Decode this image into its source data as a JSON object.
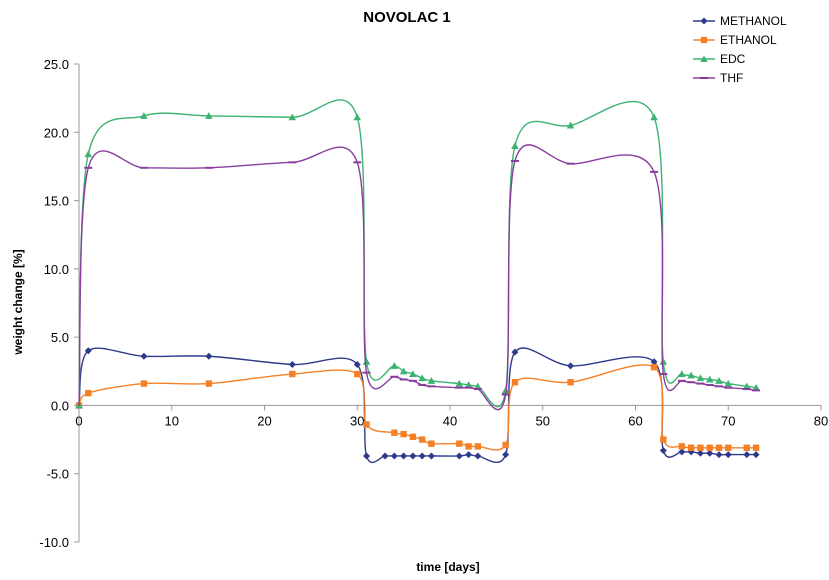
{
  "chart_data": {
    "type": "line",
    "title": "NOVOLAC 1",
    "xlabel": "time [days]",
    "ylabel": "weight change [%]",
    "xlim": [
      0,
      80
    ],
    "ylim": [
      -10,
      25
    ],
    "xticks": [
      0,
      10,
      20,
      30,
      40,
      50,
      60,
      70,
      80
    ],
    "yticks": [
      -10,
      -5,
      0,
      5,
      10,
      15,
      20,
      25
    ],
    "xtick_labels": [
      "0",
      "10",
      "20",
      "30",
      "40",
      "50",
      "60",
      "70",
      "80"
    ],
    "ytick_labels": [
      "-10.0",
      "-5.0",
      "0.0",
      "5.0",
      "10.0",
      "15.0",
      "20.0",
      "25.0"
    ],
    "grid": false,
    "legend_position": "top-right",
    "series": [
      {
        "name": "METHANOL",
        "color": "#2e3a8c",
        "marker": "diamond",
        "x": [
          0,
          1,
          7,
          14,
          23,
          30,
          31,
          33,
          34,
          35,
          36,
          37,
          38,
          41,
          42,
          43,
          46,
          47,
          53,
          62,
          63,
          65,
          66,
          67,
          68,
          69,
          70,
          72,
          73
        ],
        "y": [
          0,
          4.0,
          3.6,
          3.6,
          3.0,
          3.0,
          -3.7,
          -3.7,
          -3.7,
          -3.7,
          -3.7,
          -3.7,
          -3.7,
          -3.7,
          -3.6,
          -3.7,
          -3.6,
          3.9,
          2.9,
          3.2,
          -3.3,
          -3.4,
          -3.4,
          -3.5,
          -3.5,
          -3.6,
          -3.6,
          -3.6,
          -3.6
        ]
      },
      {
        "name": "ETHANOL",
        "color": "#f58025",
        "marker": "square",
        "x": [
          0,
          1,
          7,
          14,
          23,
          30,
          31,
          34,
          35,
          36,
          37,
          38,
          41,
          42,
          43,
          46,
          47,
          53,
          62,
          63,
          65,
          66,
          67,
          68,
          69,
          70,
          72,
          73
        ],
        "y": [
          0,
          0.9,
          1.6,
          1.6,
          2.3,
          2.3,
          -1.4,
          -2.0,
          -2.1,
          -2.3,
          -2.5,
          -2.8,
          -2.8,
          -3.0,
          -3.0,
          -2.9,
          1.7,
          1.7,
          2.8,
          -2.5,
          -3.0,
          -3.1,
          -3.1,
          -3.1,
          -3.1,
          -3.1,
          -3.1,
          -3.1
        ]
      },
      {
        "name": "EDC",
        "color": "#3cb371",
        "marker": "triangle",
        "x": [
          0,
          1,
          7,
          14,
          23,
          30,
          31,
          34,
          35,
          36,
          37,
          38,
          41,
          42,
          43,
          46,
          47,
          53,
          62,
          63,
          65,
          66,
          67,
          68,
          69,
          70,
          72,
          73
        ],
        "y": [
          0,
          18.4,
          21.2,
          21.2,
          21.1,
          21.1,
          3.2,
          2.9,
          2.5,
          2.3,
          2.0,
          1.8,
          1.6,
          1.5,
          1.4,
          1.1,
          19.0,
          20.5,
          21.1,
          3.2,
          2.3,
          2.2,
          2.0,
          1.9,
          1.8,
          1.6,
          1.4,
          1.3
        ]
      },
      {
        "name": "THF",
        "color": "#8a3d9e",
        "marker": "dash",
        "x": [
          0,
          1,
          7,
          14,
          23,
          30,
          31,
          34,
          35,
          36,
          37,
          38,
          41,
          42,
          43,
          46,
          47,
          53,
          62,
          63,
          65,
          66,
          67,
          68,
          69,
          70,
          72,
          73
        ],
        "y": [
          0,
          17.4,
          17.4,
          17.4,
          17.8,
          17.8,
          2.4,
          2.1,
          1.9,
          1.8,
          1.5,
          1.4,
          1.3,
          1.3,
          1.2,
          0.8,
          17.9,
          17.7,
          17.1,
          2.3,
          1.8,
          1.7,
          1.6,
          1.5,
          1.4,
          1.3,
          1.2,
          1.1
        ]
      }
    ]
  }
}
